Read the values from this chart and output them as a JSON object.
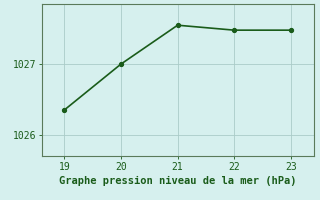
{
  "x": [
    19,
    20,
    21,
    22,
    23
  ],
  "y": [
    1026.35,
    1027.0,
    1027.55,
    1027.48,
    1027.48
  ],
  "line_color": "#1a5c1a",
  "marker": "o",
  "markersize": 3.0,
  "linewidth": 1.2,
  "bg_color": "#d6f0ee",
  "grid_color": "#aaccc8",
  "spine_color": "#5a7a5a",
  "xlabel": "Graphe pression niveau de la mer (hPa)",
  "xlabel_color": "#1a5c1a",
  "xlabel_fontsize": 7.5,
  "tick_color": "#1a5c1a",
  "tick_fontsize": 7,
  "xlim": [
    18.6,
    23.4
  ],
  "ylim": [
    1025.7,
    1027.85
  ],
  "yticks": [
    1026,
    1027
  ],
  "xticks": [
    19,
    20,
    21,
    22,
    23
  ]
}
